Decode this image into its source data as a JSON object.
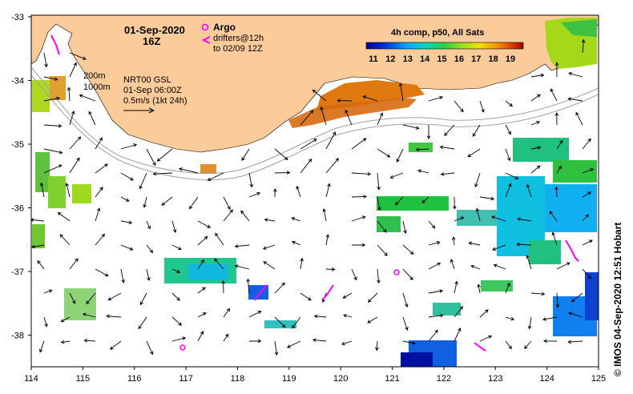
{
  "map": {
    "date": "01-Sep-2020",
    "hour": "16Z",
    "argo_label": "Argo",
    "drifters_label": "drifters@12h",
    "drifters_range": "to 02/09 12Z",
    "isobath_200": "200m",
    "isobath_1000": "1000m",
    "product": "NRT00 GSL",
    "product_time": "01-Sep 06:00Z",
    "scale_label": "0.5m/s (1kt 24h)",
    "colorbar_title": "4h comp, p50, All Sats",
    "colorbar_ticks": [
      "11",
      "12",
      "13",
      "14",
      "15",
      "16",
      "17",
      "18",
      "19"
    ],
    "credit": "©  IMOS 04-Sep-2020 12:51 Hobart",
    "lon_ticks": [
      "114",
      "115",
      "116",
      "117",
      "118",
      "119",
      "120",
      "121",
      "122",
      "123",
      "124",
      "125"
    ],
    "lat_ticks": [
      "-33",
      "-34",
      "-35",
      "-36",
      "-37",
      "-38"
    ],
    "colors": {
      "land": "#FCCB9A",
      "argo": "#FF00FF",
      "isobath": "#A0A0A0",
      "arrow": "#000000"
    }
  }
}
